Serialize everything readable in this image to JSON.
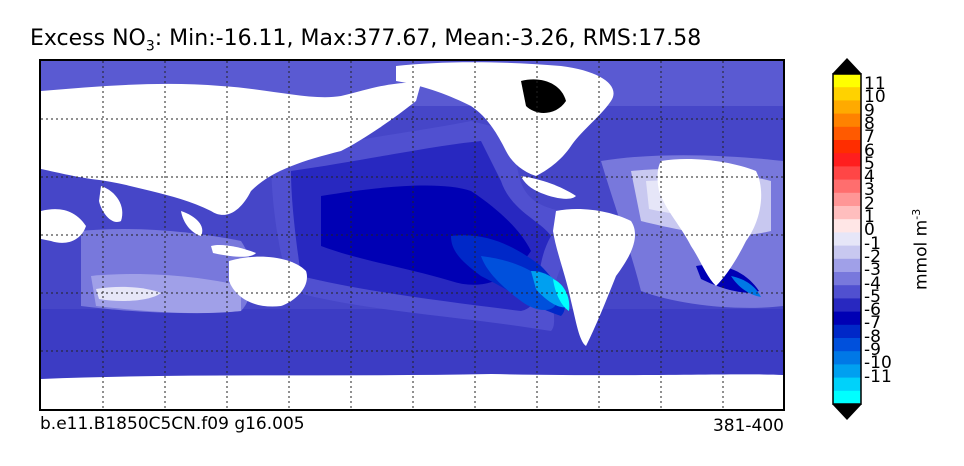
{
  "title": {
    "var": "Excess NO",
    "sub": "3",
    "stats": ": Min:-16.11, Max:377.67, Mean:-3.26, RMS:17.58"
  },
  "colorbar": {
    "label_main": "mmol m",
    "label_sup": "-3",
    "ticks": [
      "11",
      "10",
      "9",
      "8",
      "7",
      "6",
      "5",
      "4",
      "3",
      "2",
      "1",
      "0",
      "-1",
      "-2",
      "-3",
      "-4",
      "-5",
      "-6",
      "-7",
      "-8",
      "-9",
      "-10",
      "-11"
    ],
    "colors": [
      "#ffff00",
      "#ffd200",
      "#ffaa00",
      "#ff8200",
      "#ff5a00",
      "#ff2d00",
      "#ff1e1e",
      "#ff4646",
      "#ff6e6e",
      "#ff9696",
      "#ffbebe",
      "#ffe6e6",
      "#e6e6f8",
      "#c8c8f0",
      "#a0a0e8",
      "#7878dc",
      "#5050d0",
      "#2828c0",
      "#0000b4",
      "#0028c8",
      "#0050dc",
      "#0078e6",
      "#00a0f0",
      "#00d2fa",
      "#00ffff"
    ],
    "max_arrow": "#000000",
    "min_arrow": "#000000"
  },
  "footer": {
    "case_id": "b.e11.B1850C5CN.f09 g16.005",
    "years": "381-400"
  }
}
